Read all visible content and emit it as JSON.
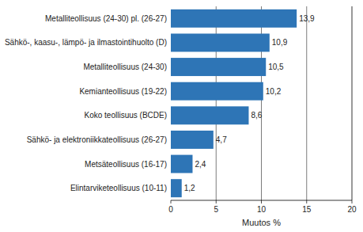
{
  "chart_data": {
    "type": "bar",
    "orientation": "horizontal",
    "categories": [
      "Elintarviketeollisuus (10-11)",
      "Metsäteollisuus (16-17)",
      "Sähkö- ja elektroniikkateollisuus (26-27)",
      "Koko teollisuus (BCDE)",
      "Kemianteollisuus (19-22)",
      "Metalliteollisuus (24-30)",
      "Sähkö-, kaasu-, lämpö- ja ilmastointihuolto (D)",
      "Metalliteollisuus (24-30) pl. (26-27)"
    ],
    "values": [
      1.2,
      2.4,
      4.7,
      8.6,
      10.2,
      10.5,
      10.9,
      13.9
    ],
    "value_labels": [
      "1,2",
      "2,4",
      "4,7",
      "8,6",
      "10,2",
      "10,5",
      "10,9",
      "13,9"
    ],
    "data_labels": true,
    "color": "#2e75b6",
    "xlabel": "Muutos %",
    "xlim": [
      0,
      20
    ],
    "xticks": [
      0,
      5,
      10,
      15,
      20
    ],
    "grid": true
  }
}
